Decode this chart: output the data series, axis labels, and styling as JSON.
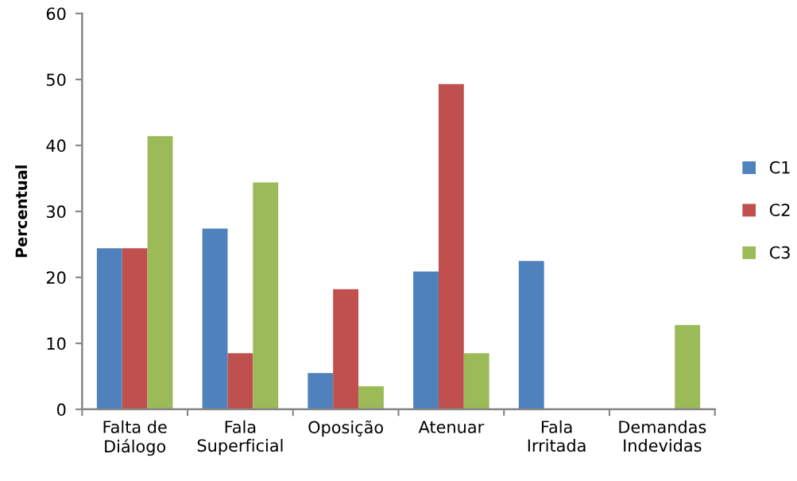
{
  "chart_data": {
    "type": "bar",
    "ylabel": "Percentual",
    "categories": [
      "Falta de\nDiálogo",
      "Fala\nSuperficial",
      "Oposição",
      "Atenuar",
      "Fala\nIrritada",
      "Demandas\nIndevidas"
    ],
    "series": [
      {
        "name": "C1",
        "color": "#4f81bd",
        "values": [
          24.4,
          27.4,
          5.5,
          20.9,
          22.5,
          0
        ]
      },
      {
        "name": "C2",
        "color": "#c0504d",
        "values": [
          24.4,
          8.5,
          18.2,
          49.3,
          0,
          0
        ]
      },
      {
        "name": "C3",
        "color": "#9bbb59",
        "values": [
          41.4,
          34.4,
          3.5,
          8.5,
          0,
          12.8
        ]
      }
    ],
    "ylim": [
      0,
      60
    ],
    "yticks": [
      0,
      10,
      20,
      30,
      40,
      50,
      60
    ],
    "grid": false,
    "legend": "right"
  }
}
